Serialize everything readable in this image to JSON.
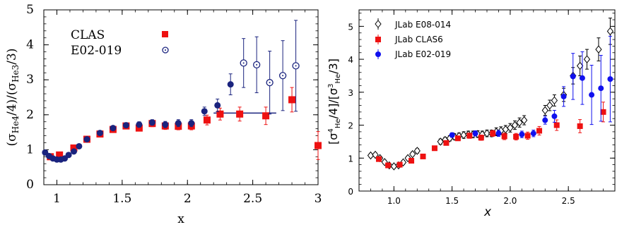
{
  "colors": {
    "clas": "#ee1111",
    "e02_filled": "#1a237e",
    "e02_open": "#1a237e",
    "jlab_clas6": "#ee1111",
    "jlab_e02": "#1010ee",
    "e08": "#000000",
    "fit_line": "#1a237e"
  },
  "chart_data": [
    {
      "type": "scatter",
      "title": "",
      "xlabel": "x",
      "ylabel": "(σHe4/4)/(σHe3/3)",
      "ylabel_parts": {
        "open": "(σ",
        "sub1": "He4",
        "mid": "/4)/(σ",
        "sub2": "He3",
        "close": "/3)"
      },
      "xlim": [
        0.9,
        3.0
      ],
      "ylim": [
        0,
        5
      ],
      "xticks": [
        1,
        1.5,
        2,
        2.5,
        3
      ],
      "xtick_labels": [
        "1",
        "1.5",
        "2",
        "2.5",
        "3"
      ],
      "yticks": [
        0,
        1,
        2,
        3,
        4,
        5
      ],
      "ytick_labels": [
        "0",
        "1",
        "2",
        "3",
        "4",
        "5"
      ],
      "legend_position": "top-left",
      "series": [
        {
          "name": "CLAS",
          "marker": "square",
          "x": [
            0.95,
            1.02,
            1.13,
            1.23,
            1.33,
            1.43,
            1.53,
            1.63,
            1.73,
            1.83,
            1.93,
            2.03,
            2.15,
            2.25,
            2.4,
            2.6,
            2.8,
            3.0
          ],
          "y": [
            0.8,
            0.85,
            1.05,
            1.3,
            1.45,
            1.58,
            1.68,
            1.62,
            1.75,
            1.68,
            1.67,
            1.68,
            1.85,
            2.02,
            2.02,
            1.97,
            2.43,
            1.12
          ],
          "yerr": [
            0.04,
            0.05,
            0.05,
            0.06,
            0.06,
            0.07,
            0.08,
            0.08,
            0.09,
            0.1,
            0.1,
            0.11,
            0.14,
            0.17,
            0.2,
            0.25,
            0.35,
            0.4
          ]
        },
        {
          "name": "E02-019 (filled)",
          "marker": "circle-filled",
          "x": [
            0.91,
            0.94,
            0.97,
            1.0,
            1.03,
            1.06,
            1.09,
            1.13,
            1.17,
            1.23,
            1.33,
            1.43,
            1.53,
            1.63,
            1.73,
            1.83,
            1.93,
            2.03,
            2.13,
            2.23,
            2.33
          ],
          "y": [
            0.92,
            0.82,
            0.75,
            0.72,
            0.72,
            0.75,
            0.85,
            0.95,
            1.1,
            1.3,
            1.48,
            1.62,
            1.7,
            1.72,
            1.78,
            1.72,
            1.76,
            1.76,
            2.1,
            2.27,
            2.87
          ],
          "yerr": [
            0.02,
            0.02,
            0.02,
            0.02,
            0.02,
            0.02,
            0.02,
            0.02,
            0.03,
            0.04,
            0.05,
            0.06,
            0.07,
            0.08,
            0.08,
            0.09,
            0.1,
            0.1,
            0.12,
            0.18,
            0.3
          ]
        },
        {
          "name": "E02-019",
          "marker": "circle-open",
          "x": [
            2.43,
            2.53,
            2.63,
            2.73,
            2.83
          ],
          "y": [
            3.48,
            3.43,
            2.92,
            3.12,
            3.4
          ],
          "yerr": [
            0.7,
            0.8,
            0.9,
            1.0,
            1.3
          ]
        }
      ],
      "fit_line": {
        "x": [
          2.2,
          2.68
        ],
        "y": [
          2.05,
          2.05
        ]
      },
      "legend": [
        {
          "label": "CLAS",
          "marker": "square"
        },
        {
          "label": "E02-019",
          "marker": "circle-open"
        }
      ]
    },
    {
      "type": "scatter",
      "title": "",
      "xlabel": "x",
      "ylabel": "[σ⁴He/4]/[σ³He/3]",
      "ylabel_parts": {
        "open1": "[σ",
        "sup1": "4",
        "sub1": "He",
        "mid": "/4]/[σ",
        "sup2": "3",
        "sub2": "He",
        "close": "/3]"
      },
      "xlim": [
        0.7,
        2.9
      ],
      "ylim": [
        0,
        5.5
      ],
      "xticks": [
        1.0,
        1.5,
        2.0,
        2.5
      ],
      "xtick_labels": [
        "1.0",
        "1.5",
        "2.0",
        "2.5"
      ],
      "yticks": [
        0,
        1,
        2,
        3,
        4,
        5
      ],
      "ytick_labels": [
        "0",
        "1",
        "2",
        "3",
        "4",
        "5"
      ],
      "legend_position": "top-left",
      "series": [
        {
          "name": "JLab E08-014",
          "marker": "diamond-open",
          "x": [
            0.8,
            0.84,
            0.88,
            0.92,
            0.96,
            1.0,
            1.04,
            1.08,
            1.12,
            1.16,
            1.2,
            1.4,
            1.44,
            1.48,
            1.52,
            1.56,
            1.6,
            1.64,
            1.68,
            1.72,
            1.76,
            1.8,
            1.84,
            1.88,
            1.92,
            1.96,
            2.0,
            2.04,
            2.08,
            2.12,
            2.3,
            2.34,
            2.38,
            2.46,
            2.54,
            2.6,
            2.66,
            2.76,
            2.86
          ],
          "y": [
            1.08,
            1.1,
            1.0,
            0.88,
            0.78,
            0.75,
            0.78,
            0.87,
            1.0,
            1.12,
            1.22,
            1.5,
            1.55,
            1.6,
            1.65,
            1.67,
            1.7,
            1.72,
            1.72,
            1.73,
            1.72,
            1.75,
            1.75,
            1.8,
            1.83,
            1.87,
            1.92,
            2.0,
            2.08,
            2.15,
            2.45,
            2.6,
            2.75,
            2.92,
            3.5,
            3.8,
            4.0,
            4.3,
            4.85
          ],
          "yerr": [
            0.06,
            0.06,
            0.06,
            0.06,
            0.06,
            0.06,
            0.06,
            0.06,
            0.06,
            0.06,
            0.07,
            0.08,
            0.08,
            0.08,
            0.09,
            0.09,
            0.1,
            0.1,
            0.1,
            0.1,
            0.1,
            0.1,
            0.1,
            0.12,
            0.12,
            0.12,
            0.13,
            0.13,
            0.14,
            0.14,
            0.15,
            0.16,
            0.17,
            0.2,
            0.25,
            0.3,
            0.3,
            0.35,
            0.4
          ]
        },
        {
          "name": "JLab CLAS6",
          "marker": "square",
          "x": [
            0.87,
            0.95,
            1.05,
            1.15,
            1.25,
            1.35,
            1.45,
            1.55,
            1.65,
            1.75,
            1.85,
            1.95,
            2.05,
            2.15,
            2.25,
            2.4,
            2.6,
            2.8
          ],
          "y": [
            0.97,
            0.78,
            0.8,
            0.92,
            1.05,
            1.3,
            1.46,
            1.6,
            1.68,
            1.62,
            1.75,
            1.66,
            1.65,
            1.68,
            1.83,
            2.0,
            1.97,
            2.4
          ],
          "yerr": [
            0.05,
            0.04,
            0.05,
            0.05,
            0.05,
            0.06,
            0.06,
            0.07,
            0.08,
            0.08,
            0.09,
            0.1,
            0.1,
            0.11,
            0.13,
            0.16,
            0.2,
            0.3
          ]
        },
        {
          "name": "JLab E02-019",
          "marker": "circle-filled",
          "x": [
            1.5,
            1.7,
            1.9,
            2.1,
            2.2,
            2.3,
            2.38,
            2.46,
            2.54,
            2.62,
            2.7,
            2.78,
            2.86
          ],
          "y": [
            1.7,
            1.75,
            1.75,
            1.72,
            1.75,
            2.15,
            2.27,
            2.87,
            3.48,
            3.43,
            2.92,
            3.12,
            3.4
          ],
          "yerr": [
            0.07,
            0.08,
            0.09,
            0.1,
            0.1,
            0.12,
            0.18,
            0.3,
            0.7,
            0.8,
            0.9,
            1.0,
            1.3
          ]
        }
      ],
      "legend": [
        {
          "label": "JLab E08-014",
          "marker": "diamond-open"
        },
        {
          "label": "JLab CLAS6",
          "marker": "square"
        },
        {
          "label": "JLab E02-019",
          "marker": "circle-filled"
        }
      ]
    }
  ]
}
